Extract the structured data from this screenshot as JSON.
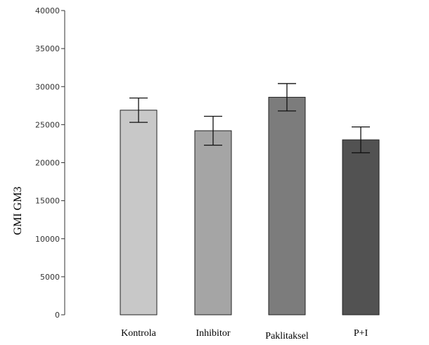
{
  "chart_data": {
    "type": "bar",
    "title": "",
    "xlabel": "",
    "ylabel": "GMI GM3",
    "ylim": [
      0,
      40000
    ],
    "yticks": [
      0,
      5000,
      10000,
      15000,
      20000,
      25000,
      30000,
      35000,
      40000
    ],
    "categories": [
      "Kontrola",
      "Inhibitor",
      "Paklitaksel",
      "P+I"
    ],
    "values": [
      26900,
      24200,
      28600,
      23000
    ],
    "error": [
      1600,
      1900,
      1800,
      1700
    ],
    "colors": [
      "#c8c8c8",
      "#a5a5a5",
      "#7c7c7c",
      "#525252"
    ],
    "grid": false,
    "legend": "none"
  }
}
